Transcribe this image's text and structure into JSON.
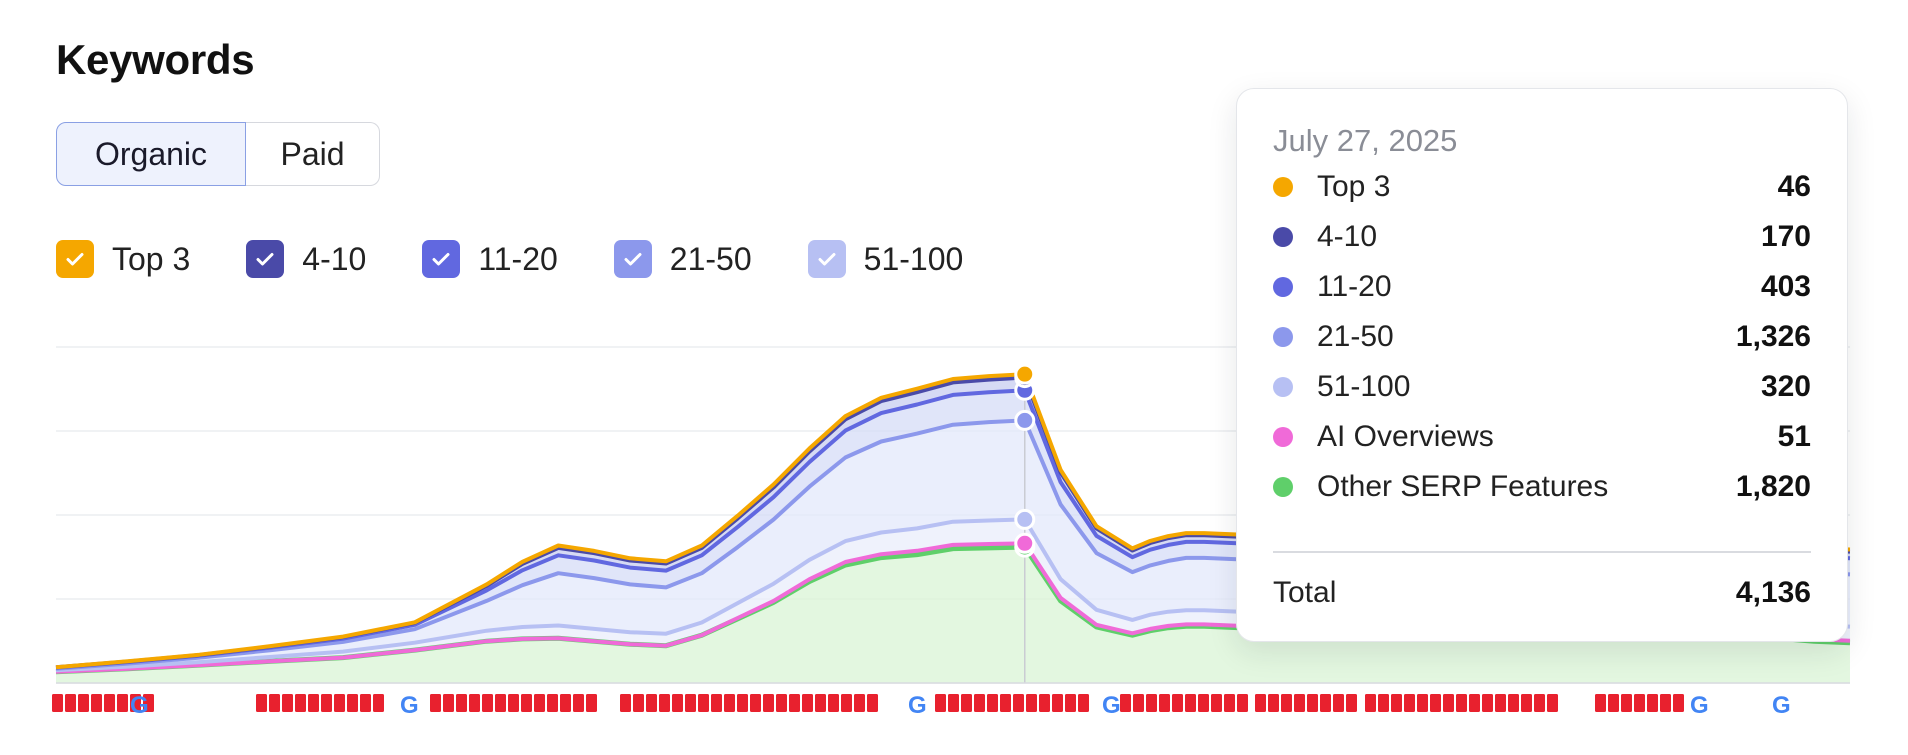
{
  "header": {
    "title": "Keywords"
  },
  "tabs": [
    {
      "label": "Organic",
      "active": true
    },
    {
      "label": "Paid",
      "active": false
    }
  ],
  "legend": [
    {
      "label": "Top 3",
      "color": "#f5a700",
      "checked": true
    },
    {
      "label": "4-10",
      "color": "#4a4aa8",
      "checked": true
    },
    {
      "label": "11-20",
      "color": "#6168e0",
      "checked": true
    },
    {
      "label": "21-50",
      "color": "#8c98ec",
      "checked": true
    },
    {
      "label": "51-100",
      "color": "#b7c0f3",
      "checked": true
    }
  ],
  "tooltip": {
    "date": "July 27, 2025",
    "rows": [
      {
        "name": "Top 3",
        "value": "46",
        "color": "#f5a700"
      },
      {
        "name": "4-10",
        "value": "170",
        "color": "#4a4aa8"
      },
      {
        "name": "11-20",
        "value": "403",
        "color": "#6168e0"
      },
      {
        "name": "21-50",
        "value": "1,326",
        "color": "#8c98ec"
      },
      {
        "name": "51-100",
        "value": "320",
        "color": "#b7c0f3"
      },
      {
        "name": "AI Overviews",
        "value": "51",
        "color": "#f06ad8"
      },
      {
        "name": "Other SERP Features",
        "value": "1,820",
        "color": "#5fcf6a"
      }
    ],
    "total_label": "Total",
    "total_value": "4,136"
  },
  "chart_data": {
    "type": "area",
    "stacked": true,
    "grid": true,
    "x_index": [
      0,
      4,
      8,
      12,
      16,
      20,
      24,
      26,
      28,
      30,
      32,
      34,
      36,
      38,
      40,
      42,
      44,
      46,
      48,
      50,
      52,
      54,
      56,
      58,
      60,
      61,
      62,
      63,
      64,
      66,
      68,
      70,
      72,
      74,
      76,
      78,
      80,
      82,
      84,
      86,
      88,
      90,
      92,
      94,
      96,
      98,
      100
    ],
    "series": [
      {
        "name": "Other SERP Features",
        "color": "#5fcf6a",
        "values": [
          150,
          190,
          240,
          290,
          340,
          440,
          560,
          590,
          600,
          560,
          520,
          500,
          640,
          860,
          1080,
          1360,
          1580,
          1680,
          1720,
          1800,
          1810,
          1820,
          1100,
          750,
          640,
          700,
          740,
          760,
          760,
          740,
          720,
          720,
          740,
          760,
          760,
          760,
          760,
          760,
          760,
          760,
          760,
          740,
          740,
          700,
          600,
          560,
          540
        ]
      },
      {
        "name": "AI Overviews",
        "color": "#f06ad8",
        "values": [
          0,
          0,
          0,
          0,
          0,
          0,
          0,
          0,
          0,
          0,
          0,
          0,
          0,
          10,
          20,
          30,
          40,
          45,
          50,
          50,
          51,
          51,
          40,
          30,
          25,
          25,
          25,
          25,
          25,
          25,
          25,
          25,
          25,
          25,
          25,
          25,
          25,
          25,
          25,
          25,
          25,
          25,
          25,
          25,
          25,
          25,
          25
        ]
      },
      {
        "name": "51-100",
        "color": "#b7c0f3",
        "values": [
          20,
          30,
          40,
          60,
          80,
          100,
          140,
          160,
          170,
          165,
          160,
          160,
          170,
          200,
          230,
          260,
          280,
          290,
          300,
          310,
          315,
          320,
          250,
          200,
          180,
          190,
          190,
          190,
          190,
          190,
          190,
          190,
          190,
          190,
          190,
          190,
          190,
          190,
          190,
          190,
          190,
          190,
          190,
          190,
          190,
          190,
          190
        ]
      },
      {
        "name": "21-50",
        "color": "#8c98ec",
        "values": [
          20,
          40,
          60,
          90,
          130,
          180,
          400,
          560,
          700,
          680,
          640,
          620,
          660,
          750,
          860,
          980,
          1120,
          1220,
          1270,
          1300,
          1318,
          1326,
          1000,
          760,
          640,
          660,
          680,
          700,
          700,
          700,
          700,
          700,
          700,
          700,
          700,
          700,
          700,
          700,
          700,
          700,
          700,
          700,
          700,
          700,
          700,
          700,
          700
        ]
      },
      {
        "name": "11-20",
        "color": "#6168e0",
        "values": [
          15,
          20,
          25,
          35,
          45,
          60,
          140,
          200,
          240,
          235,
          225,
          225,
          240,
          270,
          300,
          330,
          360,
          380,
          390,
          398,
          401,
          403,
          300,
          230,
          200,
          210,
          215,
          215,
          215,
          215,
          215,
          215,
          215,
          215,
          215,
          215,
          215,
          215,
          215,
          215,
          215,
          215,
          215,
          215,
          215,
          215,
          215
        ]
      },
      {
        "name": "4-10",
        "color": "#4a4aa8",
        "values": [
          5,
          8,
          10,
          15,
          20,
          25,
          60,
          85,
          100,
          98,
          95,
          95,
          100,
          115,
          130,
          140,
          150,
          160,
          165,
          168,
          169,
          170,
          130,
          100,
          90,
          90,
          90,
          90,
          90,
          90,
          90,
          90,
          90,
          90,
          90,
          90,
          90,
          90,
          90,
          90,
          90,
          90,
          90,
          90,
          90,
          90,
          90
        ]
      },
      {
        "name": "Top 3",
        "color": "#f5a700",
        "values": [
          2,
          3,
          4,
          5,
          6,
          8,
          20,
          28,
          32,
          31,
          30,
          30,
          32,
          36,
          40,
          42,
          44,
          45,
          46,
          46,
          46,
          46,
          35,
          30,
          28,
          28,
          28,
          28,
          28,
          28,
          28,
          28,
          28,
          28,
          28,
          28,
          28,
          28,
          28,
          28,
          28,
          28,
          28,
          28,
          28,
          28,
          28
        ]
      }
    ],
    "highlight_index": 21,
    "ylim": [
      0,
      4500
    ],
    "xlabel": "",
    "ylabel": ""
  }
}
